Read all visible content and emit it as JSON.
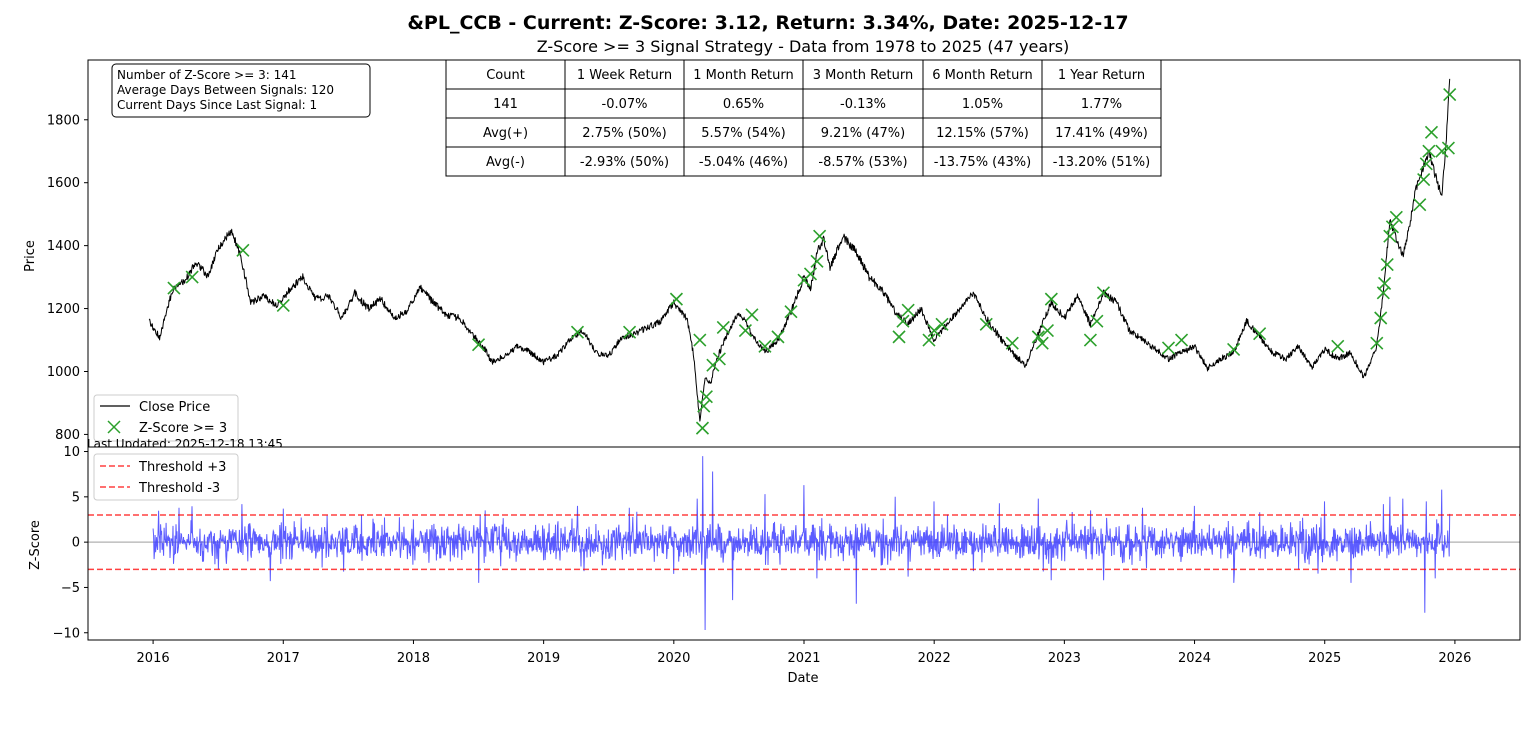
{
  "chart_data": [
    {
      "type": "line",
      "title": "&PL_CCB - Current: Z-Score: 3.12, Return: 3.34%, Date: 2025-12-17",
      "subtitle": "Z-Score >= 3 Signal Strategy - Data from 1978 to 2025 (47 years)",
      "ylabel": "Price",
      "xlabel": "",
      "xlim": [
        2015.5,
        2026.5
      ],
      "ylim": [
        760,
        1990
      ],
      "yticks": [
        800,
        1000,
        1200,
        1400,
        1600,
        1800
      ],
      "legend_position": "lower-left",
      "stats_box": {
        "line1": "Number of Z-Score >= 3: 141",
        "line2": "Average Days Between Signals: 120",
        "line3": "Current Days Since Last Signal: 1"
      },
      "table": {
        "headers": [
          "Count",
          "1 Week Return",
          "1 Month Return",
          "3 Month Return",
          "6 Month Return",
          "1 Year Return"
        ],
        "rows": [
          [
            "141",
            "-0.07%",
            "0.65%",
            "-0.13%",
            "1.05%",
            "1.77%"
          ],
          [
            "Avg(+)",
            "2.75% (50%)",
            "5.57% (54%)",
            "9.21% (47%)",
            "12.15% (57%)",
            "17.41% (49%)"
          ],
          [
            "Avg(-)",
            "-2.93% (50%)",
            "-5.04% (46%)",
            "-8.57% (53%)",
            "-13.75% (43%)",
            "-13.20% (51%)"
          ]
        ]
      },
      "series": [
        {
          "name": "Close Price",
          "color": "#000000",
          "x": [
            2015.97,
            2016.05,
            2016.15,
            2016.25,
            2016.33,
            2016.42,
            2016.5,
            2016.6,
            2016.67,
            2016.75,
            2016.85,
            2016.95,
            2017.05,
            2017.15,
            2017.25,
            2017.35,
            2017.45,
            2017.55,
            2017.65,
            2017.75,
            2017.85,
            2017.95,
            2018.05,
            2018.15,
            2018.25,
            2018.35,
            2018.45,
            2018.55,
            2018.6,
            2018.7,
            2018.8,
            2018.9,
            2019.0,
            2019.1,
            2019.2,
            2019.3,
            2019.4,
            2019.5,
            2019.6,
            2019.7,
            2019.8,
            2019.9,
            2020.0,
            2020.05,
            2020.1,
            2020.15,
            2020.2,
            2020.24,
            2020.28,
            2020.33,
            2020.4,
            2020.5,
            2020.6,
            2020.7,
            2020.8,
            2020.9,
            2021.0,
            2021.05,
            2021.1,
            2021.15,
            2021.2,
            2021.3,
            2021.4,
            2021.5,
            2021.6,
            2021.7,
            2021.8,
            2021.9,
            2022.0,
            2022.1,
            2022.2,
            2022.3,
            2022.4,
            2022.5,
            2022.6,
            2022.7,
            2022.8,
            2022.9,
            2023.0,
            2023.1,
            2023.2,
            2023.3,
            2023.4,
            2023.5,
            2023.6,
            2023.7,
            2023.8,
            2023.9,
            2024.0,
            2024.1,
            2024.2,
            2024.3,
            2024.4,
            2024.5,
            2024.6,
            2024.7,
            2024.8,
            2024.9,
            2025.0,
            2025.1,
            2025.2,
            2025.3,
            2025.4,
            2025.45,
            2025.5,
            2025.55,
            2025.6,
            2025.65,
            2025.7,
            2025.75,
            2025.8,
            2025.85,
            2025.9,
            2025.93,
            2025.96
          ],
          "values": [
            1160,
            1110,
            1260,
            1290,
            1350,
            1300,
            1390,
            1450,
            1370,
            1220,
            1240,
            1210,
            1260,
            1300,
            1230,
            1240,
            1170,
            1250,
            1200,
            1230,
            1170,
            1190,
            1270,
            1220,
            1180,
            1170,
            1120,
            1070,
            1030,
            1050,
            1080,
            1060,
            1030,
            1050,
            1100,
            1130,
            1060,
            1050,
            1110,
            1120,
            1140,
            1160,
            1220,
            1190,
            1170,
            1060,
            840,
            980,
            960,
            1040,
            1110,
            1190,
            1120,
            1060,
            1100,
            1190,
            1300,
            1260,
            1380,
            1420,
            1330,
            1430,
            1380,
            1300,
            1260,
            1190,
            1150,
            1200,
            1100,
            1150,
            1200,
            1250,
            1170,
            1110,
            1060,
            1020,
            1120,
            1220,
            1170,
            1240,
            1150,
            1250,
            1220,
            1130,
            1100,
            1070,
            1040,
            1060,
            1080,
            1010,
            1040,
            1060,
            1160,
            1110,
            1060,
            1040,
            1080,
            1010,
            1070,
            1040,
            1060,
            980,
            1080,
            1250,
            1480,
            1420,
            1370,
            1460,
            1580,
            1640,
            1700,
            1620,
            1560,
            1710,
            1930
          ]
        },
        {
          "name": "Z-Score >= 3",
          "color": "#2ca02c",
          "marker": "x",
          "x": [
            2016.16,
            2016.3,
            2016.69,
            2017.0,
            2018.5,
            2019.26,
            2019.66,
            2020.02,
            2020.2,
            2020.22,
            2020.23,
            2020.25,
            2020.3,
            2020.35,
            2020.38,
            2020.55,
            2020.6,
            2020.7,
            2020.8,
            2020.9,
            2021.0,
            2021.05,
            2021.1,
            2021.12,
            2021.73,
            2021.76,
            2021.8,
            2021.96,
            2022.0,
            2022.06,
            2022.4,
            2022.6,
            2022.8,
            2022.83,
            2022.87,
            2022.9,
            2023.2,
            2023.25,
            2023.3,
            2023.8,
            2023.9,
            2024.3,
            2024.5,
            2025.1,
            2025.4,
            2025.43,
            2025.45,
            2025.46,
            2025.48,
            2025.5,
            2025.52,
            2025.55,
            2025.73,
            2025.76,
            2025.78,
            2025.8,
            2025.82,
            2025.9,
            2025.95,
            2025.96
          ],
          "values": [
            1265,
            1300,
            1385,
            1210,
            1085,
            1125,
            1125,
            1230,
            1100,
            820,
            890,
            920,
            1020,
            1040,
            1140,
            1130,
            1180,
            1080,
            1110,
            1190,
            1290,
            1310,
            1350,
            1430,
            1110,
            1160,
            1195,
            1100,
            1130,
            1150,
            1150,
            1090,
            1110,
            1090,
            1130,
            1230,
            1100,
            1160,
            1250,
            1075,
            1100,
            1070,
            1120,
            1080,
            1090,
            1170,
            1250,
            1280,
            1340,
            1430,
            1460,
            1490,
            1530,
            1610,
            1660,
            1700,
            1760,
            1700,
            1710,
            1880
          ]
        }
      ]
    },
    {
      "type": "line",
      "ylabel": "Z-Score",
      "xlabel": "Date",
      "xlim": [
        2015.5,
        2026.5
      ],
      "ylim": [
        -10.8,
        10.5
      ],
      "yticks": [
        -10,
        -5,
        0,
        5,
        10
      ],
      "xticks": [
        2016,
        2017,
        2018,
        2019,
        2020,
        2021,
        2022,
        2023,
        2024,
        2025,
        2026
      ],
      "xtick_labels": [
        "2016",
        "2017",
        "2018",
        "2019",
        "2020",
        "2021",
        "2022",
        "2023",
        "2024",
        "2025",
        "2026"
      ],
      "legend_position": "upper-left",
      "series": [
        {
          "name": "Z-Score",
          "color": "#4040ff",
          "x": [
            2016.0,
            2016.2,
            2016.5,
            2016.68,
            2016.9,
            2017.0,
            2017.3,
            2017.6,
            2018.0,
            2018.5,
            2018.55,
            2019.0,
            2019.26,
            2019.66,
            2020.0,
            2020.18,
            2020.22,
            2020.24,
            2020.3,
            2020.45,
            2020.7,
            2021.0,
            2021.1,
            2021.4,
            2021.7,
            2021.8,
            2022.0,
            2022.3,
            2022.5,
            2022.8,
            2022.9,
            2023.2,
            2023.3,
            2023.6,
            2024.0,
            2024.3,
            2024.5,
            2024.8,
            2025.0,
            2025.2,
            2025.45,
            2025.5,
            2025.6,
            2025.77,
            2025.78,
            2025.85,
            2025.9,
            2025.96
          ],
          "values": [
            1.5,
            3.8,
            -3.0,
            4.2,
            -4.3,
            3.7,
            -2.8,
            3.0,
            2.5,
            -4.5,
            3.5,
            -2.0,
            4.0,
            3.8,
            -3.5,
            4.8,
            9.5,
            -9.7,
            7.8,
            -6.4,
            5.3,
            6.3,
            -4.0,
            -6.8,
            5.0,
            -3.8,
            4.5,
            -3.2,
            4.3,
            4.8,
            -4.2,
            3.5,
            -4.2,
            3.8,
            4.0,
            -4.5,
            3.3,
            -3.0,
            4.5,
            -4.5,
            4.2,
            5.0,
            4.8,
            -7.8,
            4.5,
            -4.0,
            5.8,
            3.12
          ]
        },
        {
          "name": "Threshold +3",
          "color": "#ff0000",
          "value": 3
        },
        {
          "name": "Threshold -3",
          "color": "#ff0000",
          "value": -3
        }
      ],
      "footnote": "Last Updated: 2025-12-18 13:45"
    }
  ]
}
